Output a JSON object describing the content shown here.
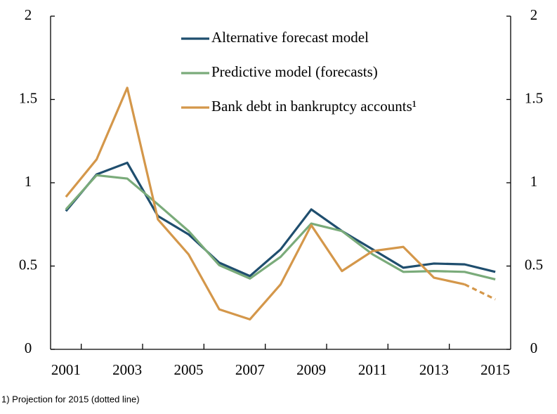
{
  "chart_data": {
    "type": "line",
    "categories": [
      "2001",
      null,
      "2003",
      null,
      "2005",
      null,
      "2007",
      null,
      "2009",
      null,
      "2011",
      null,
      "2013",
      null,
      "2015"
    ],
    "series": [
      {
        "name": "Alternative forecast model",
        "color": "#1f4e6e",
        "values": [
          0.83,
          1.05,
          1.12,
          0.8,
          0.69,
          0.52,
          0.44,
          0.6,
          0.84,
          0.71,
          0.6,
          0.49,
          0.515,
          0.51,
          0.465
        ]
      },
      {
        "name": "Predictive model (forecasts)",
        "color": "#7aab7a",
        "values": [
          0.84,
          1.045,
          1.025,
          0.87,
          0.71,
          0.505,
          0.425,
          0.555,
          0.755,
          0.71,
          0.57,
          0.465,
          0.47,
          0.465,
          0.42
        ]
      },
      {
        "name": "Bank debt in bankruptcy accounts¹",
        "color": "#d4974a",
        "values": [
          0.915,
          1.14,
          1.57,
          0.78,
          0.57,
          0.24,
          0.18,
          0.39,
          0.745,
          0.47,
          0.59,
          0.615,
          0.43,
          0.39,
          0.3
        ],
        "dashed_last": 1
      }
    ],
    "ylim": [
      0,
      2
    ],
    "yticks": [
      0,
      0.5,
      1,
      1.5,
      2
    ],
    "y2lim": [
      0,
      2
    ],
    "y2ticks": [
      0,
      0.5,
      1,
      1.5,
      2
    ],
    "footnote": "1) Projection for 2015 (dotted line)"
  }
}
